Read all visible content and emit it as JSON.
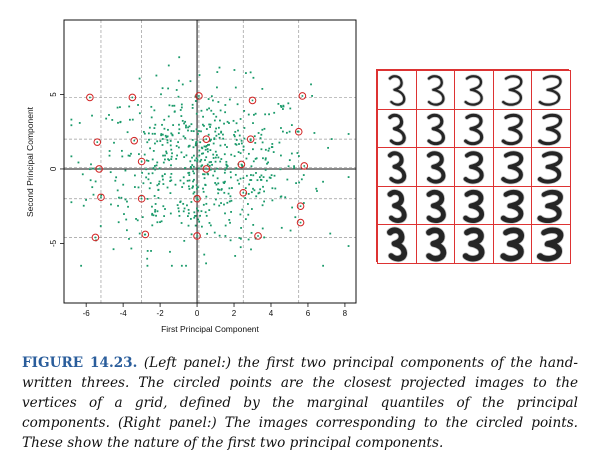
{
  "caption": {
    "label": "FIGURE 14.23.",
    "text": "(Left panel:) the first two principal components of the hand-written threes. The circled points are the closest projected images to the vertices of a grid, defined by the marginal quantiles of the principal components. (Right panel:) The images corresponding to the circled points. These show the nature of the first two principal components."
  },
  "chart_data": {
    "type": "scatter",
    "title": "",
    "xlabel": "First Principal Component",
    "ylabel": "Second Principal Component",
    "xlim": [
      -7.2,
      8.6
    ],
    "ylim": [
      -9.0,
      10.0
    ],
    "xticks": [
      -6,
      -4,
      -2,
      0,
      2,
      4,
      6,
      8
    ],
    "yticks": [
      -5,
      0,
      5
    ],
    "grid_x": [
      -5.2,
      -3,
      0.1,
      2.5,
      5.5
    ],
    "grid_y": [
      -4.6,
      -2.0,
      0.1,
      2.0,
      4.8
    ],
    "point_color": "#1a9a6a",
    "circle_color": "#d22222",
    "circled_points": [
      {
        "x": -5.8,
        "y": 4.8
      },
      {
        "x": -3.5,
        "y": 4.8
      },
      {
        "x": 0.1,
        "y": 4.9
      },
      {
        "x": 3.0,
        "y": 4.6
      },
      {
        "x": 5.7,
        "y": 4.9
      },
      {
        "x": -5.4,
        "y": 1.8
      },
      {
        "x": -3.4,
        "y": 1.9
      },
      {
        "x": 0.5,
        "y": 2.0
      },
      {
        "x": 2.9,
        "y": 2.0
      },
      {
        "x": 5.5,
        "y": 2.5
      },
      {
        "x": -5.3,
        "y": 0.0
      },
      {
        "x": -3.0,
        "y": 0.5
      },
      {
        "x": 0.5,
        "y": 0.0
      },
      {
        "x": 2.4,
        "y": 0.3
      },
      {
        "x": 5.8,
        "y": 0.2
      },
      {
        "x": -5.2,
        "y": -1.9
      },
      {
        "x": -3.0,
        "y": -2.0
      },
      {
        "x": 0.0,
        "y": -2.0
      },
      {
        "x": 2.5,
        "y": -1.6
      },
      {
        "x": 5.6,
        "y": -2.5
      },
      {
        "x": -5.5,
        "y": -4.6
      },
      {
        "x": -2.8,
        "y": -4.4
      },
      {
        "x": 0.0,
        "y": -4.5
      },
      {
        "x": 3.3,
        "y": -4.5
      },
      {
        "x": 5.6,
        "y": -3.6
      }
    ],
    "point_count": 658
  },
  "digits": {
    "rows": 5,
    "cols": 5,
    "border_color": "#d33333"
  }
}
